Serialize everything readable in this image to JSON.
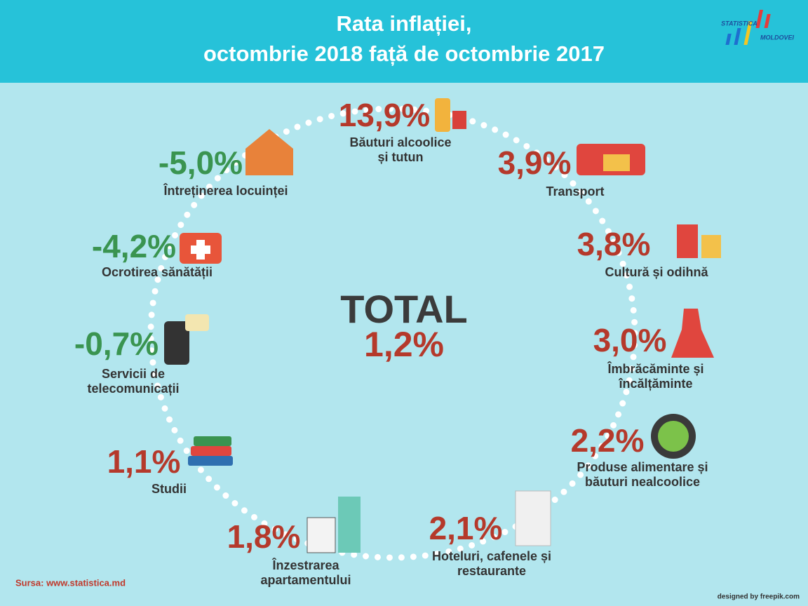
{
  "header": {
    "title_lines": [
      "Rata inflației,",
      "octombrie 2018 față de octombrie 2017"
    ],
    "logo": [
      "STATISTICA",
      "MOLDOVEI"
    ]
  },
  "total": {
    "label": "TOTAL",
    "value": "1,2%",
    "color": "#b5392b"
  },
  "items": [
    {
      "value": "13,9%",
      "label_lines": [
        "Băuturi alcoolice",
        "și tutun"
      ],
      "color": "#b5392b"
    },
    {
      "value": "3,9%",
      "label_lines": [
        "Transport"
      ],
      "color": "#b5392b"
    },
    {
      "value": "3,8%",
      "label_lines": [
        "Cultură și odihnă"
      ],
      "color": "#b5392b"
    },
    {
      "value": "3,0%",
      "label_lines": [
        "Îmbrăcăminte și",
        "încălțăminte"
      ],
      "color": "#b5392b"
    },
    {
      "value": "2,2%",
      "label_lines": [
        "Produse alimentare și",
        "băuturi nealcoolice"
      ],
      "color": "#b5392b"
    },
    {
      "value": "2,1%",
      "label_lines": [
        "Hoteluri, cafenele și",
        "restaurante"
      ],
      "color": "#b5392b"
    },
    {
      "value": "1,8%",
      "label_lines": [
        "Înzestrarea",
        "apartamentului"
      ],
      "color": "#b5392b"
    },
    {
      "value": "1,1%",
      "label_lines": [
        "Studii"
      ],
      "color": "#b5392b"
    },
    {
      "value": "-0,7%",
      "label_lines": [
        "Servicii de",
        "telecomunicații"
      ],
      "color": "#3a9450"
    },
    {
      "value": "-4,2%",
      "label_lines": [
        "Ocrotirea sănătății"
      ],
      "color": "#3a9450"
    },
    {
      "value": "-5,0%",
      "label_lines": [
        "Întreținerea locuinței"
      ],
      "color": "#3a9450"
    }
  ],
  "footer": {
    "source": "Sursa: www.statistica.md",
    "credit": "designed by freepik.com"
  }
}
